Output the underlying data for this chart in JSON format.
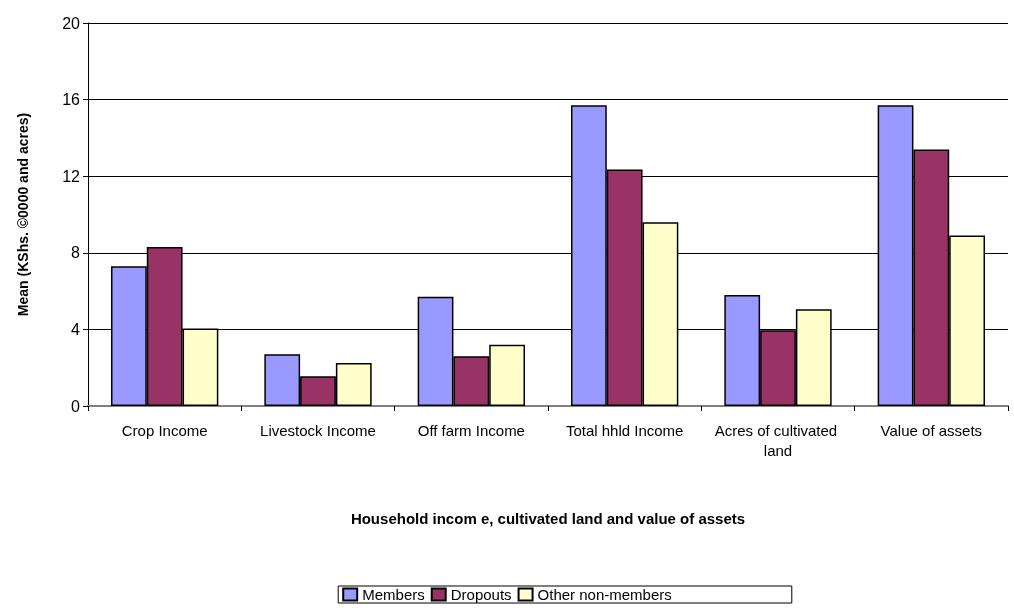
{
  "chart_data": {
    "type": "bar",
    "xlabel": "Household incom e, cultivated land and value of assets",
    "ylabel": "Mean (KShs. ©0000 and acres)",
    "categories": [
      "Crop Income",
      "Livestock Income",
      "Off farm Income",
      "Total hhld Income",
      "Acres of cultivated land",
      "Value of assets"
    ],
    "series": [
      {
        "name": "Members",
        "color": "#9999ff",
        "values": [
          7.3,
          2.7,
          5.7,
          15.7,
          5.8,
          15.7
        ]
      },
      {
        "name": "Dropouts",
        "color": "#993366",
        "values": [
          8.3,
          1.55,
          2.6,
          12.35,
          3.95,
          13.4
        ]
      },
      {
        "name": "Other non-members",
        "color": "#ffffcc",
        "values": [
          4.05,
          2.25,
          3.2,
          9.6,
          5.05,
          8.9
        ]
      }
    ],
    "ylim": [
      0,
      20
    ],
    "yticks": [
      0,
      4,
      8,
      12,
      16,
      20
    ],
    "grid": "y",
    "legend": "bottom"
  }
}
